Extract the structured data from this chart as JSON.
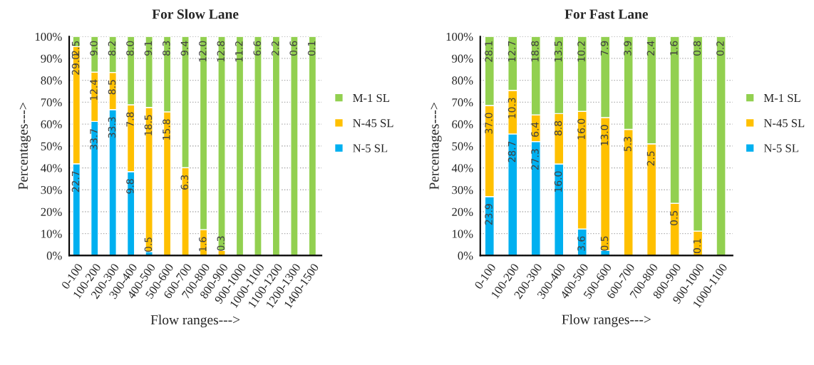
{
  "chart_data": [
    {
      "type": "bar",
      "title": "For Slow Lane",
      "xlabel": "Flow ranges--->",
      "ylabel": "Percentages--->",
      "stacked": true,
      "legend": "right",
      "grid": true,
      "categories": [
        "0-100",
        "100-200",
        "200-300",
        "300-400",
        "400-500",
        "500-600",
        "600-700",
        "700-800",
        "800-900",
        "900-1000",
        "1000-1100",
        "1100-1200",
        "1200-1300",
        "1400-1500"
      ],
      "ylim": [
        0,
        100
      ],
      "yticks": [
        {
          "value": 0,
          "label": "0%"
        },
        {
          "value": 10,
          "label": "10%"
        },
        {
          "value": 20,
          "label": "20%"
        },
        {
          "value": 30,
          "label": "30%"
        },
        {
          "value": 40,
          "label": "40%"
        },
        {
          "value": 50,
          "label": "50%"
        },
        {
          "value": 60,
          "label": "60%"
        },
        {
          "value": 70,
          "label": "70%"
        },
        {
          "value": 80,
          "label": "80%"
        },
        {
          "value": 90,
          "label": "90%"
        },
        {
          "value": 100,
          "label": "100%"
        }
      ],
      "series": [
        {
          "name": "N-5 SL",
          "color": "#00b0f0",
          "values": [
            41.9,
            61.2,
            66.6,
            38.3,
            1.8,
            0,
            0,
            0,
            0,
            0,
            0,
            0,
            0,
            0
          ]
        },
        {
          "name": "N-45 SL",
          "color": "#ffc000",
          "values": [
            53.5,
            22.5,
            17.0,
            30.5,
            65.8,
            65.6,
            40.1,
            11.8,
            2.3,
            0,
            0,
            0,
            0,
            0
          ]
        },
        {
          "name": "M-1 SL",
          "color": "#92d050",
          "values": [
            4.6,
            16.3,
            16.4,
            31.2,
            32.4,
            34.4,
            59.9,
            88.2,
            97.7,
            100,
            100,
            100,
            100,
            100
          ]
        }
      ],
      "annotations": [
        {
          "text": "22.7",
          "x": "0-100",
          "y": 41.9
        },
        {
          "text": "29.0",
          "x": "0-100",
          "y": 95.4
        },
        {
          "text": "2.5",
          "x": "0-100",
          "y": 100
        },
        {
          "text": "33.7",
          "x": "100-200",
          "y": 61.2
        },
        {
          "text": "12.4",
          "x": "100-200",
          "y": 83.7
        },
        {
          "text": "9.0",
          "x": "100-200",
          "y": 100
        },
        {
          "text": "33.3",
          "x": "200-300",
          "y": 66.6
        },
        {
          "text": "8.5",
          "x": "200-300",
          "y": 83.6
        },
        {
          "text": "8.2",
          "x": "200-300",
          "y": 100
        },
        {
          "text": "9.8",
          "x": "300-400",
          "y": 38.3
        },
        {
          "text": "7.8",
          "x": "300-400",
          "y": 68.8
        },
        {
          "text": "8.0",
          "x": "300-400",
          "y": 100
        },
        {
          "text": "0.5",
          "x": "400-500",
          "y": 1.8
        },
        {
          "text": "18.5",
          "x": "400-500",
          "y": 67.6
        },
        {
          "text": "9.1",
          "x": "400-500",
          "y": 100
        },
        {
          "text": "15.8",
          "x": "500-600",
          "y": 65.6
        },
        {
          "text": "8.3",
          "x": "500-600",
          "y": 100
        },
        {
          "text": "6.3",
          "x": "600-700",
          "y": 40.1
        },
        {
          "text": "9.4",
          "x": "600-700",
          "y": 100
        },
        {
          "text": "1.6",
          "x": "700-800",
          "y": 11.8
        },
        {
          "text": "12.0",
          "x": "700-800",
          "y": 100
        },
        {
          "text": "0.3",
          "x": "800-900",
          "y": 2.3
        },
        {
          "text": "12.8",
          "x": "800-900",
          "y": 100
        },
        {
          "text": "11.2",
          "x": "900-1000",
          "y": 100
        },
        {
          "text": "6.6",
          "x": "1000-1100",
          "y": 100
        },
        {
          "text": "2.2",
          "x": "1100-1200",
          "y": 100
        },
        {
          "text": "0.6",
          "x": "1200-1300",
          "y": 100
        },
        {
          "text": "0.1",
          "x": "1400-1500",
          "y": 100
        }
      ]
    },
    {
      "type": "bar",
      "title": "For Fast Lane",
      "xlabel": "Flow ranges--->",
      "ylabel": "Percentages--->",
      "stacked": true,
      "legend": "right",
      "grid": true,
      "categories": [
        "0-100",
        "100-200",
        "200-300",
        "300-400",
        "400-500",
        "500-600",
        "600-700",
        "700-800",
        "800-900",
        "900-1000",
        "1000-1100"
      ],
      "ylim": [
        0,
        100
      ],
      "yticks": [
        {
          "value": 0,
          "label": "0%"
        },
        {
          "value": 10,
          "label": "10%"
        },
        {
          "value": 20,
          "label": "20%"
        },
        {
          "value": 30,
          "label": "30%"
        },
        {
          "value": 40,
          "label": "40%"
        },
        {
          "value": 50,
          "label": "50%"
        },
        {
          "value": 60,
          "label": "60%"
        },
        {
          "value": 70,
          "label": "70%"
        },
        {
          "value": 80,
          "label": "80%"
        },
        {
          "value": 90,
          "label": "90%"
        },
        {
          "value": 100,
          "label": "100%"
        }
      ],
      "series": [
        {
          "name": "N-5 SL",
          "color": "#00b0f0",
          "values": [
            26.9,
            55.5,
            52.0,
            41.8,
            12.1,
            2.3,
            0,
            0,
            0,
            0,
            0
          ]
        },
        {
          "name": "N-45 SL",
          "color": "#ffc000",
          "values": [
            41.6,
            19.9,
            12.2,
            23.0,
            53.7,
            60.7,
            57.6,
            51.0,
            23.8,
            11.1,
            0
          ]
        },
        {
          "name": "M-1 SL",
          "color": "#92d050",
          "values": [
            31.5,
            24.6,
            35.8,
            35.2,
            34.2,
            37.0,
            42.4,
            49.0,
            76.2,
            88.9,
            100
          ]
        }
      ],
      "annotations": [
        {
          "text": "23.9",
          "x": "0-100",
          "y": 26.9
        },
        {
          "text": "37.0",
          "x": "0-100",
          "y": 68.5
        },
        {
          "text": "28.1",
          "x": "0-100",
          "y": 100
        },
        {
          "text": "28.7",
          "x": "100-200",
          "y": 55.5
        },
        {
          "text": "10.3",
          "x": "100-200",
          "y": 75.4
        },
        {
          "text": "12.7",
          "x": "100-200",
          "y": 100
        },
        {
          "text": "27.3",
          "x": "200-300",
          "y": 52.0
        },
        {
          "text": "6.4",
          "x": "200-300",
          "y": 64.2
        },
        {
          "text": "18.8",
          "x": "200-300",
          "y": 100
        },
        {
          "text": "16.0",
          "x": "300-400",
          "y": 41.8
        },
        {
          "text": "8.8",
          "x": "300-400",
          "y": 64.8
        },
        {
          "text": "13.5",
          "x": "300-400",
          "y": 100
        },
        {
          "text": "3.6",
          "x": "400-500",
          "y": 12.1
        },
        {
          "text": "16.0",
          "x": "400-500",
          "y": 65.8
        },
        {
          "text": "10.2",
          "x": "400-500",
          "y": 100
        },
        {
          "text": "0.5",
          "x": "500-600",
          "y": 2.3
        },
        {
          "text": "13.0",
          "x": "500-600",
          "y": 63.0
        },
        {
          "text": "7.9",
          "x": "500-600",
          "y": 100
        },
        {
          "text": "5.3",
          "x": "600-700",
          "y": 57.6
        },
        {
          "text": "3.9",
          "x": "600-700",
          "y": 100
        },
        {
          "text": "2.5",
          "x": "700-800",
          "y": 51.0
        },
        {
          "text": "2.4",
          "x": "700-800",
          "y": 100
        },
        {
          "text": "0.5",
          "x": "800-900",
          "y": 23.8
        },
        {
          "text": "1.6",
          "x": "800-900",
          "y": 100
        },
        {
          "text": "0.1",
          "x": "900-1000",
          "y": 11.1
        },
        {
          "text": "0.8",
          "x": "900-1000",
          "y": 100
        },
        {
          "text": "0.2",
          "x": "1000-1100",
          "y": 100
        }
      ]
    }
  ]
}
